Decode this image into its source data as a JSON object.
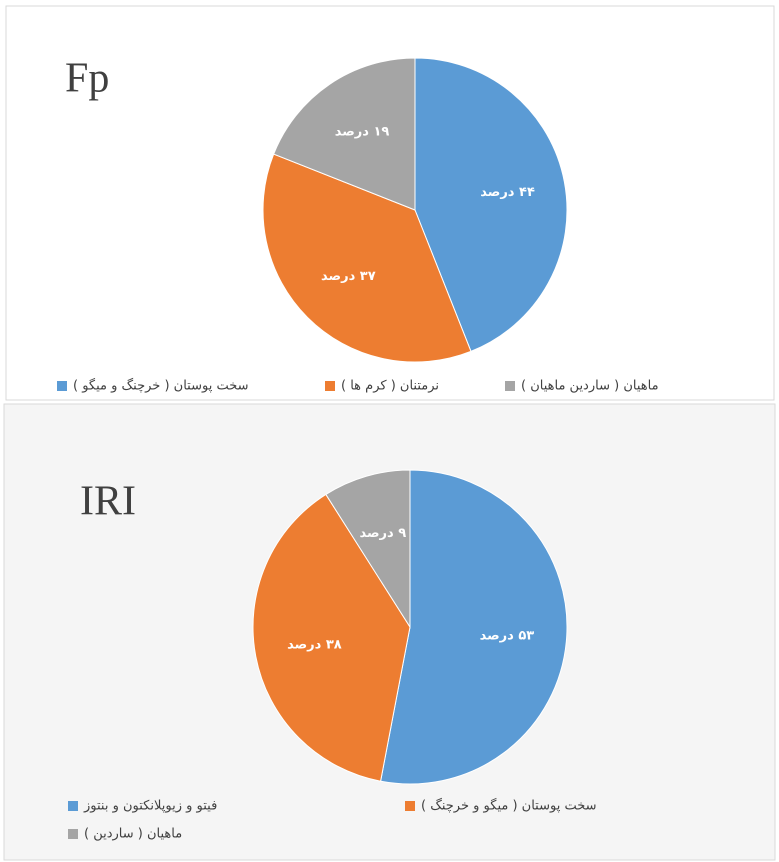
{
  "chart_data": [
    {
      "type": "pie",
      "title": "Fp",
      "categories": [
        "سخت پوستان ( خرچنگ و میگو )",
        "نرمتنان ( کرم ها )",
        "ماهیان ( ساردین ماهیان )"
      ],
      "values": [
        44,
        37,
        19
      ],
      "value_labels": [
        "۴۴ درصد",
        "۳۷ درصد",
        "۱۹ درصد"
      ],
      "colors": [
        "#5b9bd5",
        "#ed7d31",
        "#a5a5a5"
      ],
      "legend": "bottom"
    },
    {
      "type": "pie",
      "title": "IRI",
      "categories": [
        "فیتو و زیوپلانکتون و بنتوز",
        "سخت پوستان ( میگو و خرچنگ )",
        "ماهیان ( ساردین )"
      ],
      "values": [
        53,
        38,
        9
      ],
      "value_labels": [
        "۵۳ درصد",
        "۳۸ درصد",
        "۹ درصد"
      ],
      "colors": [
        "#5b9bd5",
        "#ed7d31",
        "#a5a5a5"
      ],
      "legend": "bottom"
    }
  ]
}
